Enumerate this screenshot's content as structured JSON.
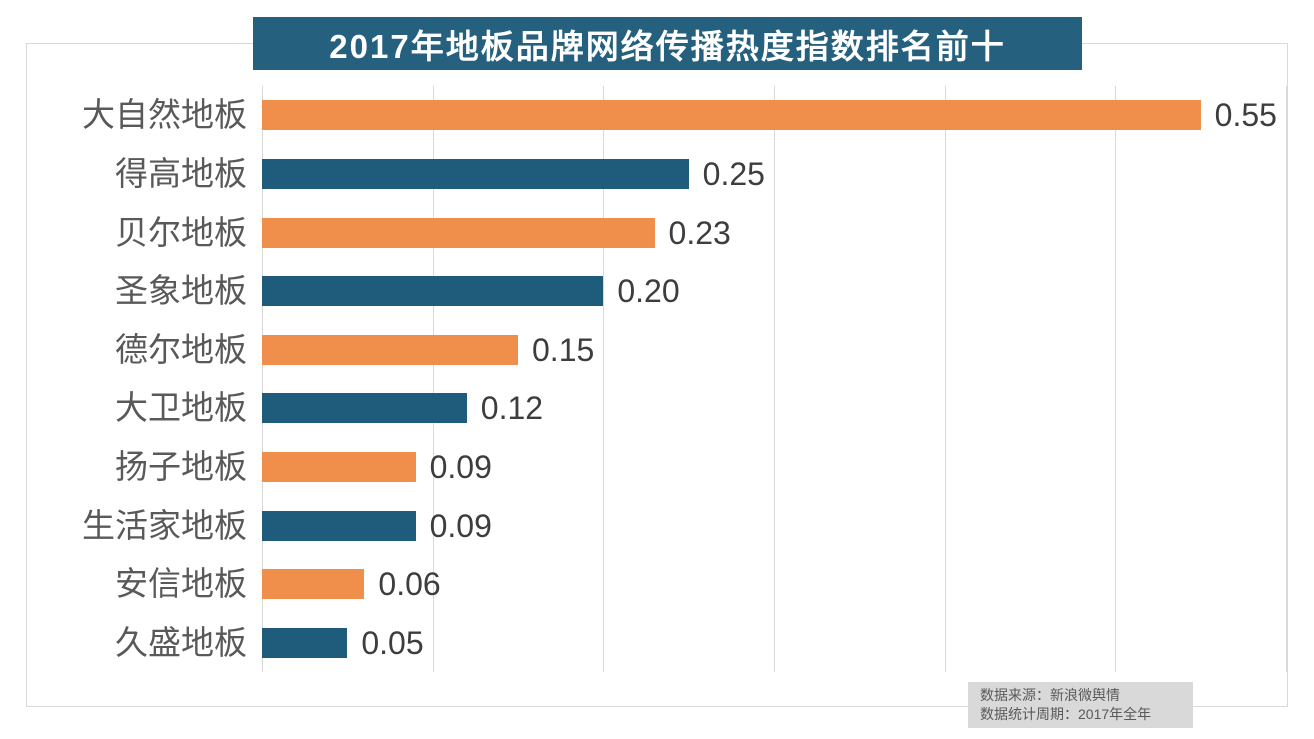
{
  "chart_data": {
    "type": "bar",
    "orientation": "horizontal",
    "title": "2017年地板品牌网络传播热度指数排名前十",
    "categories": [
      "大自然地板",
      "得高地板",
      "贝尔地板",
      "圣象地板",
      "德尔地板",
      "大卫地板",
      "扬子地板",
      "生活家地板",
      "安信地板",
      "久盛地板"
    ],
    "values": [
      0.55,
      0.25,
      0.23,
      0.2,
      0.15,
      0.12,
      0.09,
      0.09,
      0.06,
      0.05
    ],
    "value_labels": [
      "0.55",
      "0.25",
      "0.23",
      "0.20",
      "0.15",
      "0.12",
      "0.09",
      "0.09",
      "0.06",
      "0.05"
    ],
    "xlim": [
      0,
      0.6
    ],
    "gridline_step": 0.1,
    "grid": "vertical-only",
    "legend": "none",
    "axis_tick_labels": "none"
  },
  "style": {
    "title_bg": "#26607f",
    "title_color": "#ffffff",
    "bar_color_odd_rows": "#ef8f4b",
    "bar_color_even_rows": "#1f5b7a",
    "category_label_color": "#595959",
    "value_label_color": "#3d3d3d",
    "gridline_color": "#d9d9d9",
    "border_color": "#d9d9d9",
    "footer_bg": "#d9d9d9",
    "footer_text_color": "#595959"
  },
  "footer": {
    "source_line": "数据来源：新浪微舆情",
    "period_line": "数据统计周期：2017年全年"
  }
}
